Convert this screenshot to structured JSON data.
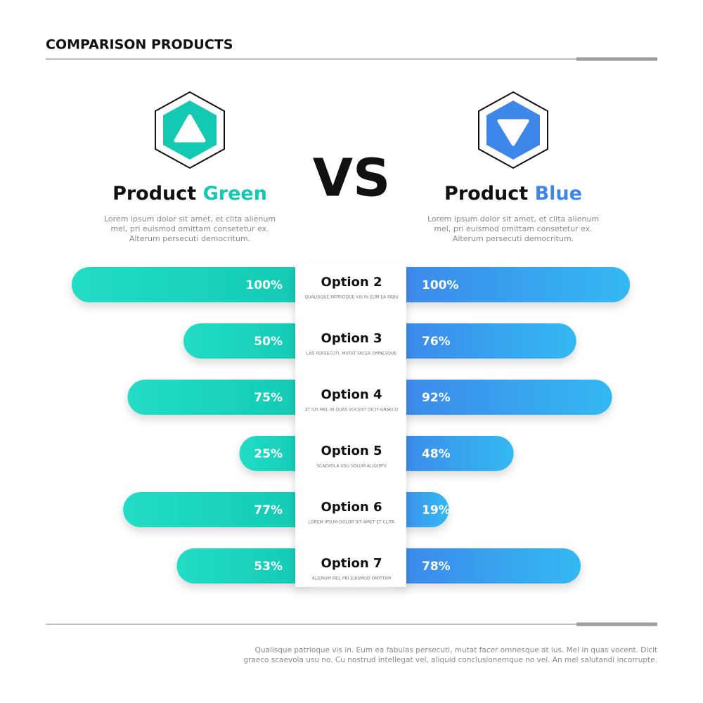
{
  "chart_data": {
    "type": "butterfly-bar",
    "title": "COMPARISON PRODUCTS",
    "center_label": "VS",
    "categories": [
      "Option 2",
      "Option 3",
      "Option 4",
      "Option 5",
      "Option 6",
      "Option 7"
    ],
    "category_notes": [
      "QUALISQUE PATRIOQUE VIS IN EUM EA FABU",
      "LAS PERSECUTI, MUTAT FACER OMNESQUE",
      "AT IUS MEL IN QUAS VOCENT DICIT GRAECO",
      "SCAEVOLA USU SOLUM ALIQUIPV",
      "LOREM IPSUM DOLOR SIT  AMET ET CLITA",
      "ALIENUM MEL PRI EUISMOD OMITTAM"
    ],
    "series": [
      {
        "name": "Product Green",
        "color": "#14c9b4",
        "description": [
          "Lorem ipsum dolor sit  amet, et clita alienum",
          "mel, pri euismod omittam  consetetur ex.",
          "Alterum persecuti democritum."
        ],
        "values": [
          100,
          50,
          75,
          25,
          77,
          53
        ],
        "value_labels": [
          "100%",
          "50%",
          "75%",
          "25%",
          "77%",
          "53%"
        ]
      },
      {
        "name": "Product Blue",
        "color": "#3d86ea",
        "description": [
          "Lorem ipsum dolor sit  amet, et clita alienum",
          "mel, pri euismod omittam  consetetur ex.",
          "Alterum persecuti democritum."
        ],
        "values": [
          100,
          76,
          92,
          48,
          19,
          78
        ],
        "value_labels": [
          "100%",
          "76%",
          "92%",
          "48%",
          "19%",
          "78%"
        ]
      }
    ],
    "footer": [
      "Qualisque patrioque vis in. Eum ea fabulas persecuti, mutat facer omnesque at ius. Mel in quas vocent. Dicit",
      "graeco scaevola usu no. Cu nostrud intellegat vel, aliquid conclusionemque no vel. An mel salutandi incorrupte."
    ]
  }
}
